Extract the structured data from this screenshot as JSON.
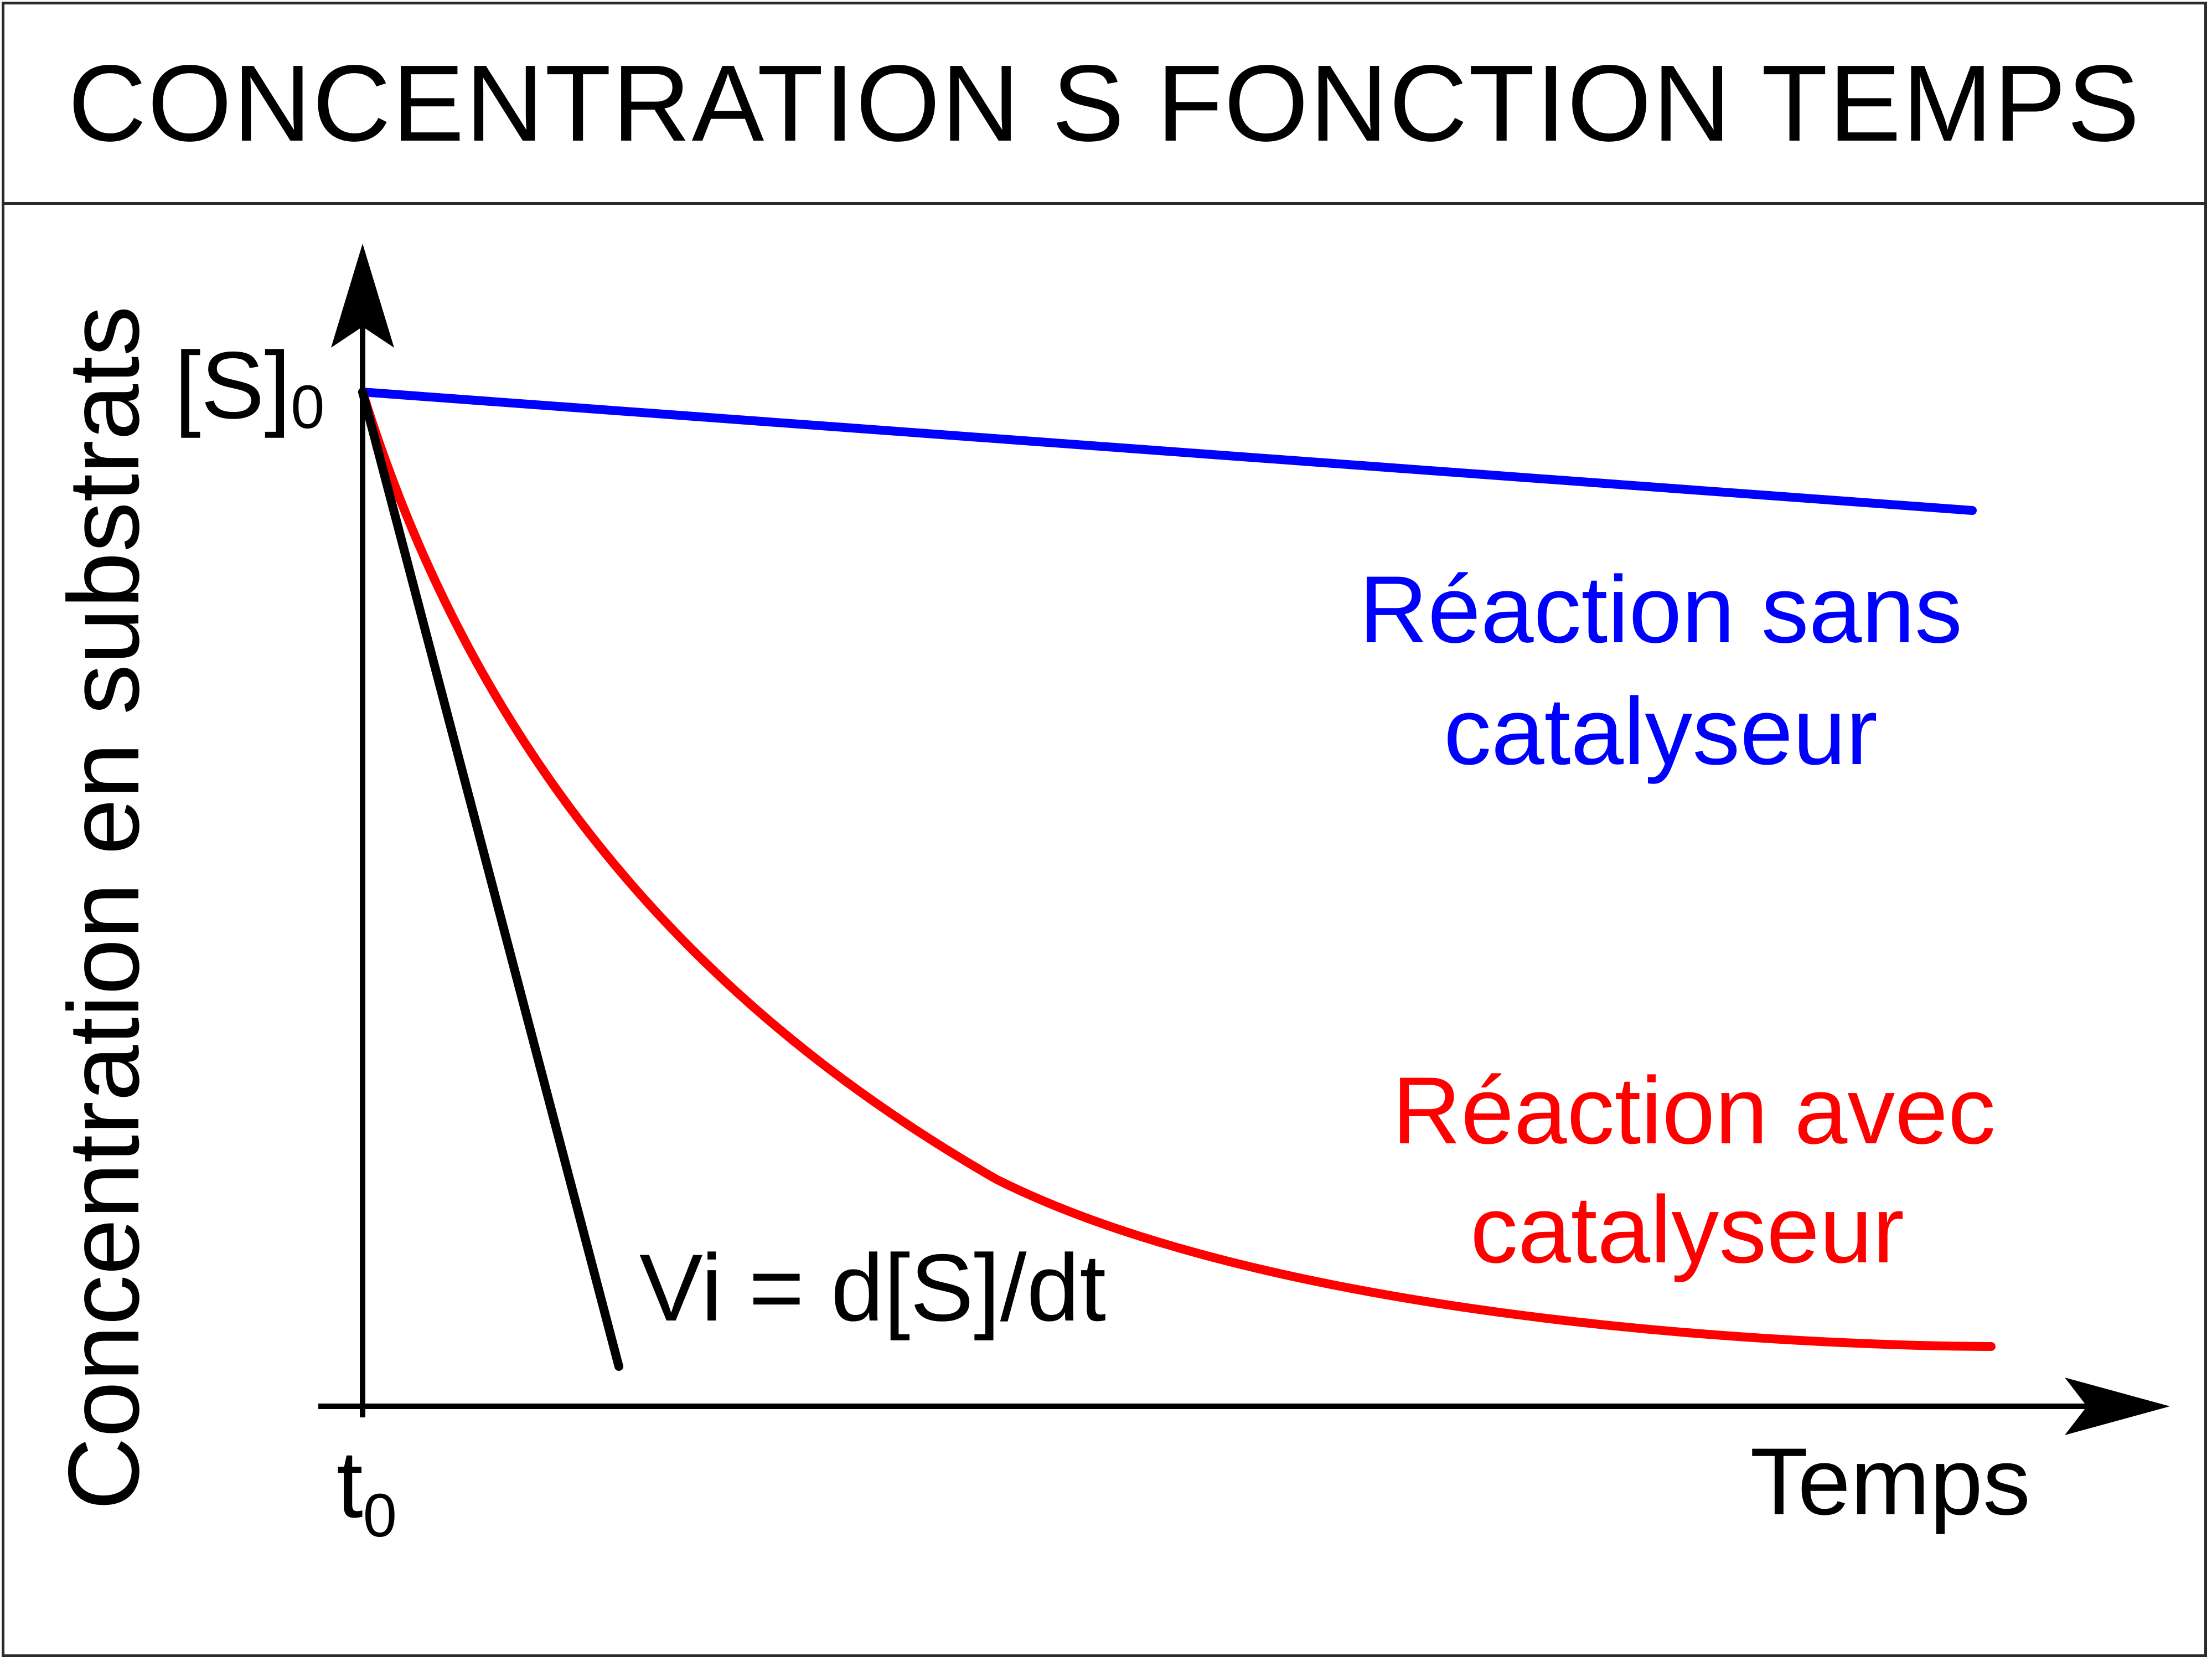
{
  "title": "CONCENTRATION S FONCTION TEMPS",
  "y_axis_label": "Concentration en substrats",
  "x_axis_label": "Temps",
  "y_origin_label": "[S]",
  "y_origin_sub": "0",
  "x_origin_label": "t",
  "x_origin_sub": "0",
  "curves": {
    "without_catalyst": {
      "label_line1": "Réaction sans",
      "label_line2": "catalyseur",
      "color": "#0000ff"
    },
    "with_catalyst": {
      "label_line1": "Réaction avec",
      "label_line2": "catalyseur",
      "color": "#ff0000"
    },
    "tangent": {
      "label": "Vi = d[S]/dt",
      "color": "#000000"
    }
  }
}
